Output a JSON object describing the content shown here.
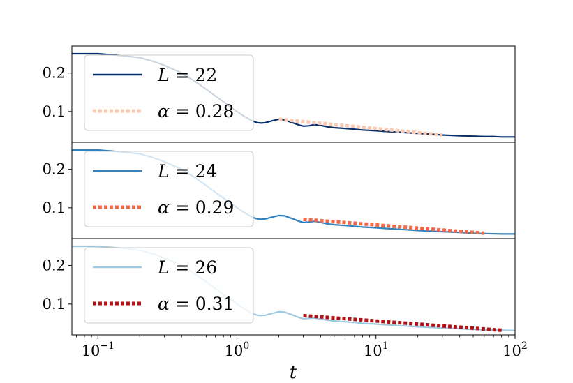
{
  "chart_data": {
    "type": "line",
    "shared_x": {
      "label": "t",
      "scale": "log",
      "lim": [
        0.065,
        100
      ],
      "ticks": [
        {
          "value": 0.1,
          "base": "10",
          "exp": "−1"
        },
        {
          "value": 1,
          "base": "10",
          "exp": "0"
        },
        {
          "value": 10,
          "base": "10",
          "exp": "1"
        },
        {
          "value": 100,
          "base": "10",
          "exp": "2"
        }
      ]
    },
    "panels": [
      {
        "ylim": [
          0.02,
          0.27
        ],
        "yticks": [
          {
            "value": 0.1,
            "label": "0.1"
          },
          {
            "value": 0.2,
            "label": "0.2"
          }
        ],
        "series": [
          {
            "name": "L = 22",
            "legend_symbol": "L",
            "legend_value": "= 22",
            "style": "solid",
            "color": "#08306b",
            "points": [
              [
                0.065,
                0.25
              ],
              [
                0.1,
                0.25
              ],
              [
                0.15,
                0.245
              ],
              [
                0.2,
                0.24
              ],
              [
                0.25,
                0.23
              ],
              [
                0.3,
                0.22
              ],
              [
                0.4,
                0.2
              ],
              [
                0.5,
                0.178
              ],
              [
                0.6,
                0.158
              ],
              [
                0.7,
                0.14
              ],
              [
                0.8,
                0.125
              ],
              [
                0.9,
                0.112
              ],
              [
                1.0,
                0.1
              ],
              [
                1.1,
                0.09
              ],
              [
                1.2,
                0.082
              ],
              [
                1.3,
                0.075
              ],
              [
                1.4,
                0.071
              ],
              [
                1.5,
                0.07
              ],
              [
                1.6,
                0.071
              ],
              [
                1.8,
                0.076
              ],
              [
                2.0,
                0.08
              ],
              [
                2.2,
                0.078
              ],
              [
                2.5,
                0.071
              ],
              [
                2.8,
                0.065
              ],
              [
                3.0,
                0.062
              ],
              [
                3.3,
                0.063
              ],
              [
                3.6,
                0.066
              ],
              [
                4.0,
                0.064
              ],
              [
                4.5,
                0.06
              ],
              [
                5.0,
                0.058
              ],
              [
                6.0,
                0.056
              ],
              [
                7.0,
                0.054
              ],
              [
                8.0,
                0.052
              ],
              [
                10,
                0.05
              ],
              [
                12,
                0.048
              ],
              [
                15,
                0.046
              ],
              [
                20,
                0.043
              ],
              [
                25,
                0.041
              ],
              [
                30,
                0.039
              ],
              [
                40,
                0.037
              ],
              [
                50,
                0.036
              ],
              [
                60,
                0.035
              ],
              [
                70,
                0.035
              ],
              [
                80,
                0.034
              ],
              [
                100,
                0.034
              ]
            ]
          },
          {
            "name": "α = 0.28",
            "legend_symbol": "α",
            "legend_value": "= 0.28",
            "style": "dotted",
            "color": "#fcc8b0",
            "points": [
              [
                2.0,
                0.08
              ],
              [
                30,
                0.039
              ]
            ]
          }
        ]
      },
      {
        "ylim": [
          0.02,
          0.27
        ],
        "yticks": [
          {
            "value": 0.1,
            "label": "0.1"
          },
          {
            "value": 0.2,
            "label": "0.2"
          }
        ],
        "series": [
          {
            "name": "L = 24",
            "legend_symbol": "L",
            "legend_value": "= 24",
            "style": "solid",
            "color": "#3182bd",
            "points": [
              [
                0.065,
                0.25
              ],
              [
                0.1,
                0.25
              ],
              [
                0.15,
                0.245
              ],
              [
                0.2,
                0.24
              ],
              [
                0.25,
                0.23
              ],
              [
                0.3,
                0.22
              ],
              [
                0.4,
                0.2
              ],
              [
                0.5,
                0.178
              ],
              [
                0.6,
                0.158
              ],
              [
                0.7,
                0.14
              ],
              [
                0.8,
                0.125
              ],
              [
                0.9,
                0.112
              ],
              [
                1.0,
                0.1
              ],
              [
                1.1,
                0.09
              ],
              [
                1.2,
                0.082
              ],
              [
                1.3,
                0.075
              ],
              [
                1.4,
                0.071
              ],
              [
                1.5,
                0.07
              ],
              [
                1.6,
                0.071
              ],
              [
                1.8,
                0.076
              ],
              [
                2.0,
                0.08
              ],
              [
                2.2,
                0.079
              ],
              [
                2.5,
                0.072
              ],
              [
                2.8,
                0.065
              ],
              [
                3.0,
                0.062
              ],
              [
                3.3,
                0.063
              ],
              [
                3.6,
                0.065
              ],
              [
                4.0,
                0.062
              ],
              [
                4.5,
                0.058
              ],
              [
                5.0,
                0.056
              ],
              [
                6.0,
                0.054
              ],
              [
                7.0,
                0.052
              ],
              [
                8.0,
                0.05
              ],
              [
                10,
                0.048
              ],
              [
                12,
                0.046
              ],
              [
                15,
                0.044
              ],
              [
                20,
                0.041
              ],
              [
                30,
                0.038
              ],
              [
                40,
                0.036
              ],
              [
                50,
                0.034
              ],
              [
                60,
                0.033
              ],
              [
                80,
                0.032
              ],
              [
                100,
                0.032
              ]
            ]
          },
          {
            "name": "α = 0.29",
            "legend_symbol": "α",
            "legend_value": "= 0.29",
            "style": "dotted",
            "color": "#f4684a",
            "points": [
              [
                3.0,
                0.07
              ],
              [
                60,
                0.034
              ]
            ]
          }
        ]
      },
      {
        "ylim": [
          0.02,
          0.27
        ],
        "yticks": [
          {
            "value": 0.1,
            "label": "0.1"
          },
          {
            "value": 0.2,
            "label": "0.2"
          }
        ],
        "series": [
          {
            "name": "L = 26",
            "legend_symbol": "L",
            "legend_value": "= 26",
            "style": "solid",
            "color": "#9ecae1",
            "points": [
              [
                0.065,
                0.25
              ],
              [
                0.1,
                0.25
              ],
              [
                0.15,
                0.245
              ],
              [
                0.2,
                0.24
              ],
              [
                0.25,
                0.23
              ],
              [
                0.3,
                0.22
              ],
              [
                0.4,
                0.2
              ],
              [
                0.5,
                0.178
              ],
              [
                0.6,
                0.158
              ],
              [
                0.7,
                0.14
              ],
              [
                0.8,
                0.125
              ],
              [
                0.9,
                0.112
              ],
              [
                1.0,
                0.1
              ],
              [
                1.1,
                0.09
              ],
              [
                1.2,
                0.082
              ],
              [
                1.3,
                0.075
              ],
              [
                1.4,
                0.071
              ],
              [
                1.5,
                0.07
              ],
              [
                1.6,
                0.071
              ],
              [
                1.8,
                0.076
              ],
              [
                2.0,
                0.08
              ],
              [
                2.2,
                0.079
              ],
              [
                2.5,
                0.072
              ],
              [
                2.8,
                0.065
              ],
              [
                3.0,
                0.062
              ],
              [
                3.3,
                0.063
              ],
              [
                3.6,
                0.064
              ],
              [
                4.0,
                0.061
              ],
              [
                4.5,
                0.058
              ],
              [
                5.0,
                0.056
              ],
              [
                6.0,
                0.054
              ],
              [
                7.0,
                0.052
              ],
              [
                8.0,
                0.05
              ],
              [
                10,
                0.048
              ],
              [
                12,
                0.046
              ],
              [
                15,
                0.044
              ],
              [
                20,
                0.041
              ],
              [
                30,
                0.038
              ],
              [
                40,
                0.036
              ],
              [
                50,
                0.034
              ],
              [
                60,
                0.033
              ],
              [
                80,
                0.032
              ],
              [
                100,
                0.031
              ]
            ]
          },
          {
            "name": "α = 0.31",
            "legend_symbol": "α",
            "legend_value": "= 0.31",
            "style": "dotted",
            "color": "#b11218",
            "points": [
              [
                3.0,
                0.07
              ],
              [
                80,
                0.032
              ]
            ]
          }
        ]
      }
    ]
  }
}
